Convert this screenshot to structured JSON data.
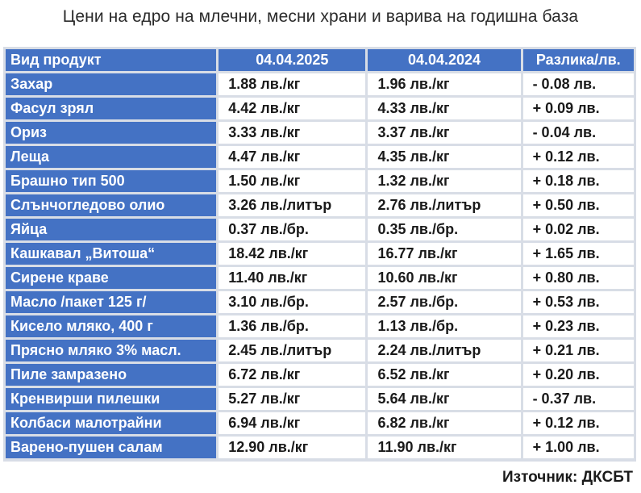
{
  "title": "Цени на едро на млечни, месни храни и варива на годишна база",
  "table": {
    "headers": [
      "Вид продукт",
      "04.04.2025",
      "04.04.2024",
      "Разлика/лв."
    ],
    "rows": [
      [
        "Захар",
        "1.88 лв./кг",
        "1.96 лв./кг",
        "- 0.08 лв."
      ],
      [
        "Фасул зрял",
        "4.42 лв./кг",
        "4.33 лв./кг",
        "+ 0.09 лв."
      ],
      [
        "Ориз",
        "3.33 лв./кг",
        "3.37 лв./кг",
        "- 0.04 лв."
      ],
      [
        "Леща",
        "4.47 лв./кг",
        "4.35 лв./кг",
        "+ 0.12 лв."
      ],
      [
        "Брашно тип 500",
        "1.50 лв./кг",
        "1.32 лв./кг",
        "+ 0.18 лв."
      ],
      [
        "Слънчогледово олио",
        "3.26 лв./литър",
        "2.76 лв./литър",
        "+ 0.50 лв."
      ],
      [
        "Яйца",
        "0.37 лв./бр.",
        "0.35 лв./бр.",
        "+ 0.02 лв."
      ],
      [
        "Кашкавал „Витоша“",
        "18.42 лв./кг",
        "16.77 лв./кг",
        "+ 1.65 лв."
      ],
      [
        "Сирене краве",
        "11.40 лв./кг",
        "10.60 лв./кг",
        "+ 0.80 лв."
      ],
      [
        "Масло /пакет 125 г/",
        "3.10 лв./бр.",
        "2.57 лв./бр.",
        "+ 0.53 лв."
      ],
      [
        "Кисело мляко, 400 г",
        "1.36 лв./бр.",
        "1.13 лв./бр.",
        "+ 0.23 лв."
      ],
      [
        "Прясно мляко 3% масл.",
        "2.45 лв./литър",
        "2.24 лв./литър",
        "+ 0.21 лв."
      ],
      [
        "Пиле замразено",
        "6.72 лв./кг",
        "6.52 лв./кг",
        "+ 0.20 лв."
      ],
      [
        "Кренвирши пилешки",
        "5.27 лв./кг",
        "5.64 лв./кг",
        "- 0.37 лв."
      ],
      [
        "Колбаси малотрайни",
        "6.94 лв./кг",
        "6.82 лв./кг",
        "+ 0.12 лв."
      ],
      [
        "Варено-пушен салам",
        "12.90 лв./кг",
        "11.90 лв./кг",
        "+ 1.00 лв."
      ]
    ]
  },
  "source": "Източник: ДКСБТ",
  "colors": {
    "header_bg": "#4472c4",
    "header_text": "#ffffff",
    "cell_bg": "#ffffff",
    "grid": "#d8dde6"
  }
}
